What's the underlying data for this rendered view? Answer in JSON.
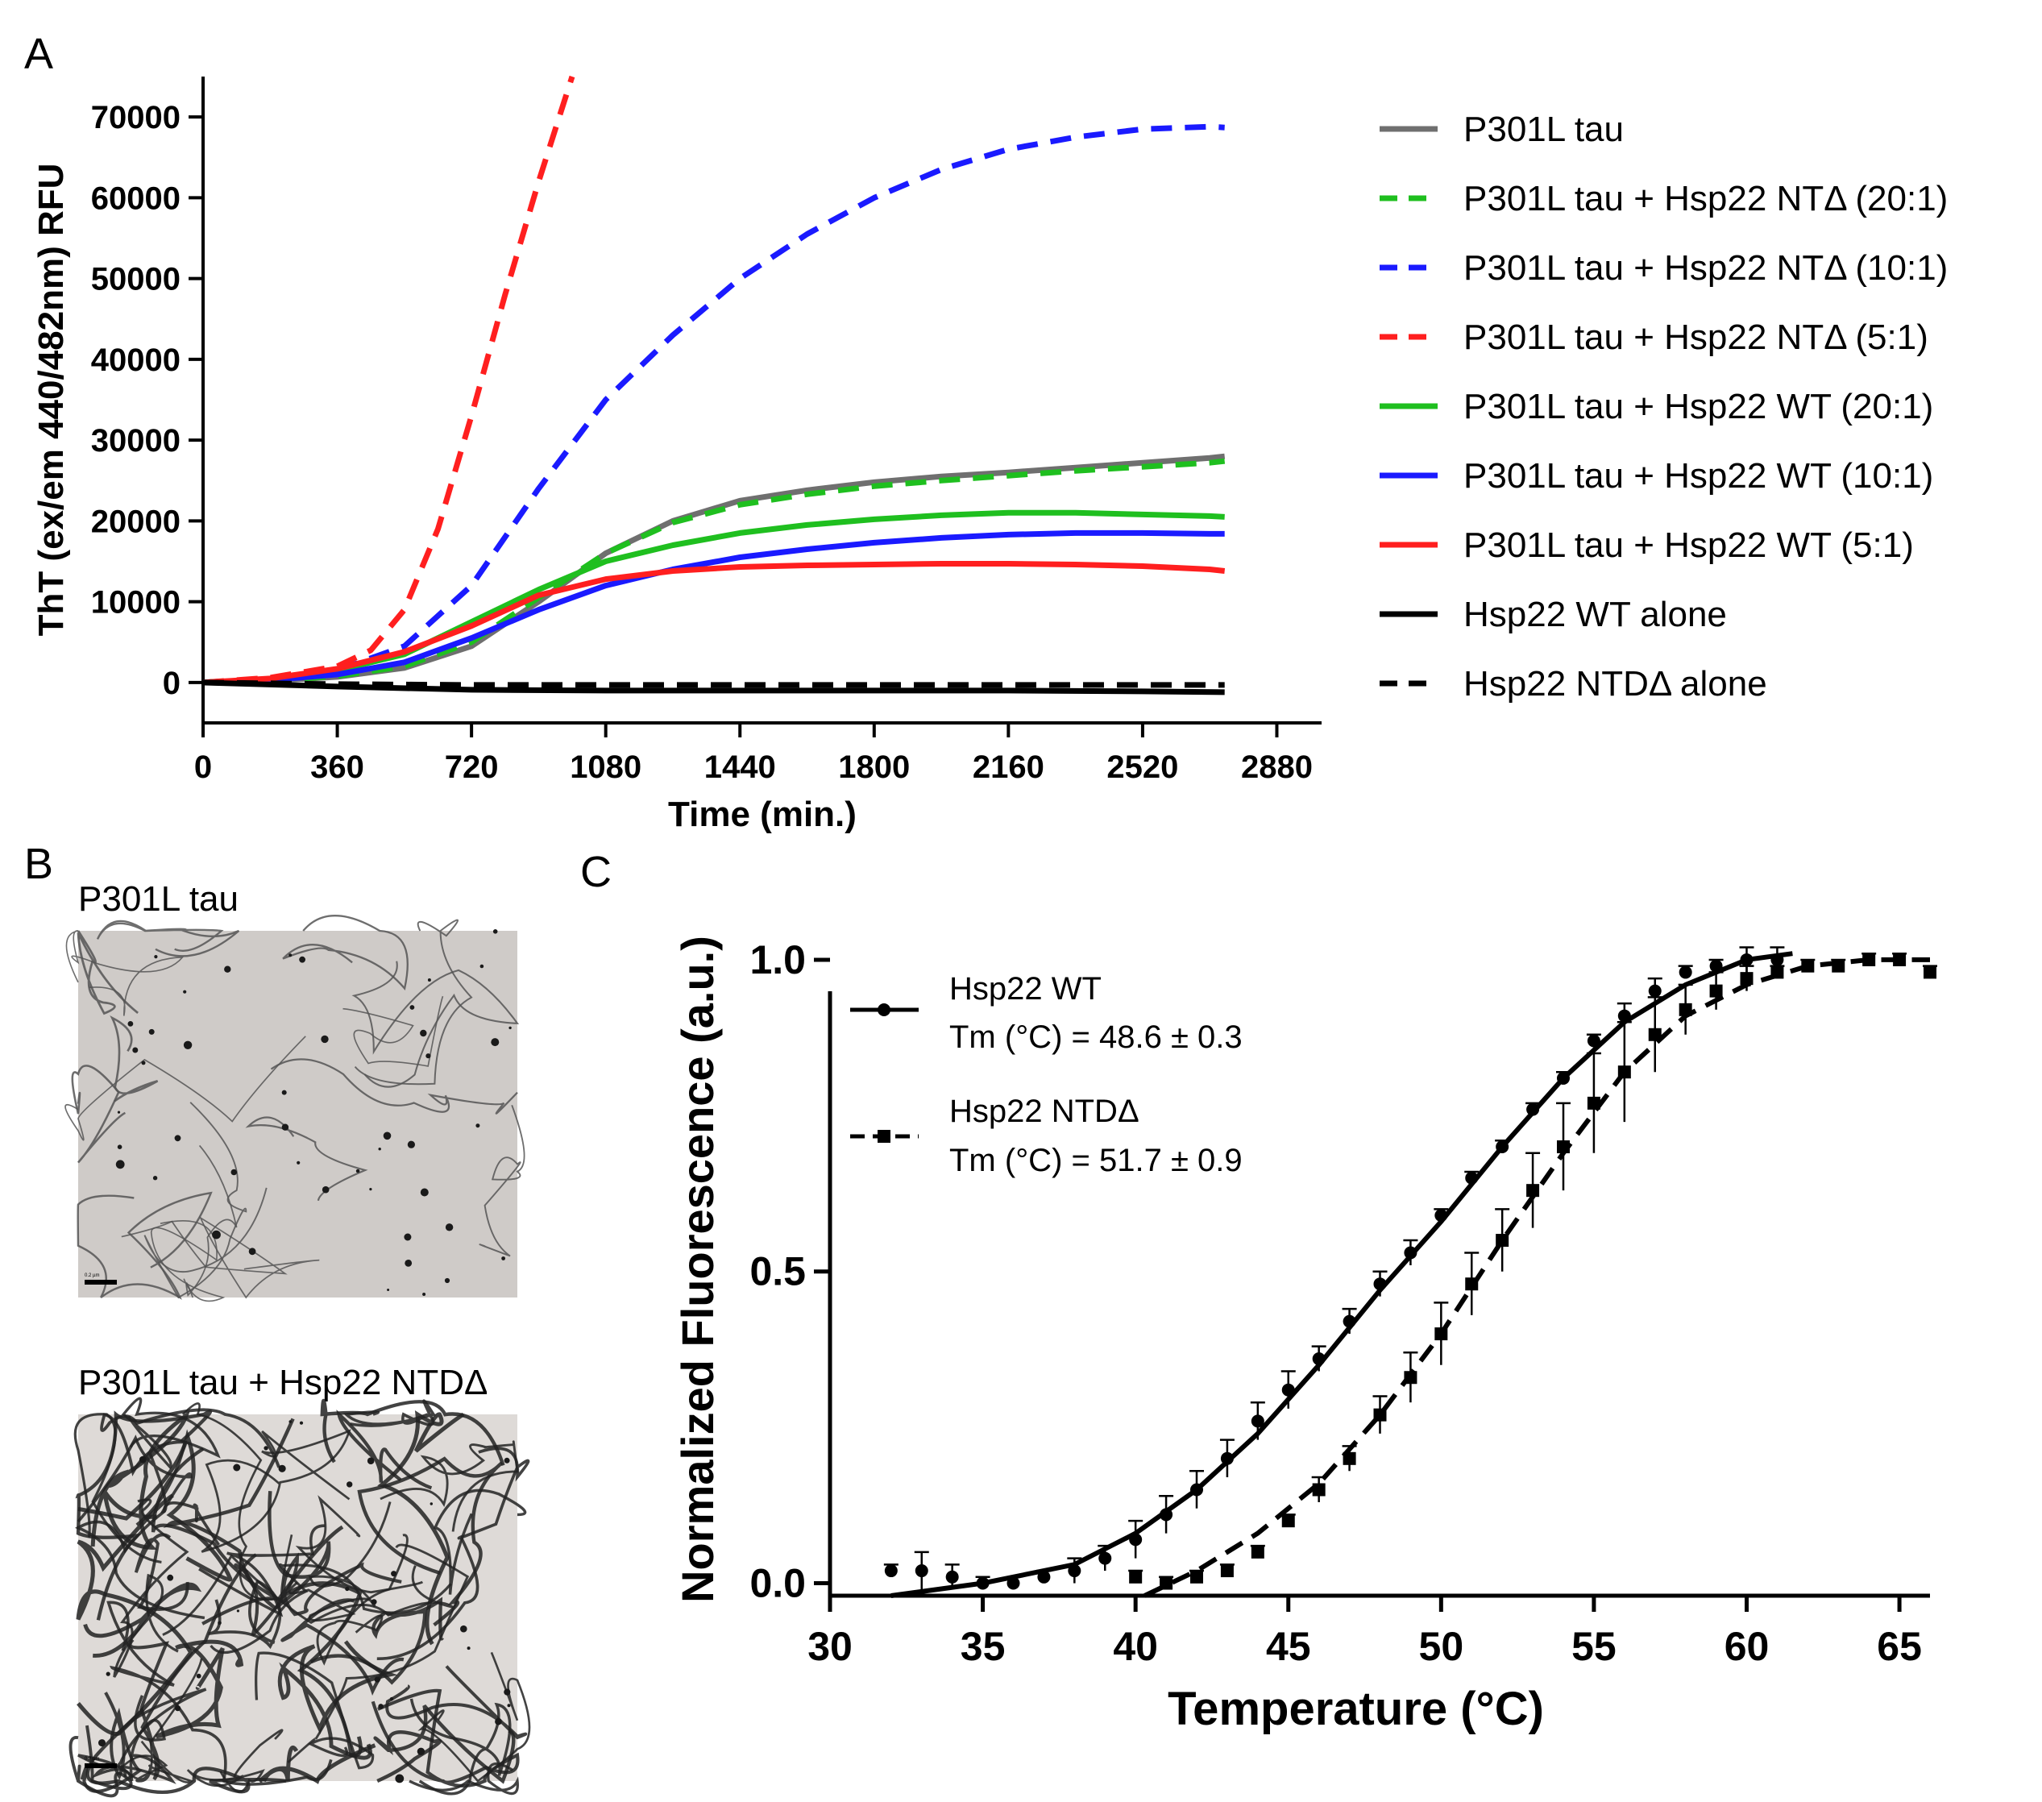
{
  "panels": {
    "a": {
      "label": "A"
    },
    "b": {
      "label": "B",
      "images": [
        {
          "caption": "P301L tau",
          "scale_bar_text": "0.2 µm"
        },
        {
          "caption": "P301L tau + Hsp22 NTDΔ",
          "scale_bar_text": "0.2 µm"
        }
      ]
    },
    "c": {
      "label": "C"
    }
  },
  "colors": {
    "gray": "#6f6f6f",
    "green": "#1fbf1f",
    "blue": "#1a1aff",
    "red": "#ff1f1f",
    "black": "#000000"
  },
  "chart_data": [
    {
      "panel": "A",
      "type": "line",
      "title": "",
      "xlabel": "Time (min.)",
      "ylabel": "ThT (ex/em 440/482nm) RFU",
      "xlim": [
        0,
        3000
      ],
      "ylim": [
        -5000,
        75000
      ],
      "xticks": [
        0,
        360,
        720,
        1080,
        1440,
        1800,
        2160,
        2520,
        2880
      ],
      "yticks": [
        0,
        10000,
        20000,
        30000,
        40000,
        50000,
        60000,
        70000
      ],
      "legend_position": "right",
      "series": [
        {
          "name": "P301L tau",
          "color": "#6f6f6f",
          "dash": false,
          "x": [
            0,
            180,
            360,
            540,
            720,
            900,
            1080,
            1260,
            1440,
            1620,
            1800,
            1980,
            2160,
            2340,
            2520,
            2700,
            2740
          ],
          "y": [
            0,
            200,
            700,
            1800,
            4500,
            10000,
            16000,
            20000,
            22500,
            23800,
            24800,
            25500,
            26000,
            26600,
            27200,
            27800,
            28000
          ]
        },
        {
          "name": "P301L tau +  Hsp22 NTΔ (20:1)",
          "color": "#1fbf1f",
          "dash": true,
          "x": [
            0,
            180,
            360,
            540,
            720,
            900,
            1080,
            1260,
            1440,
            1620,
            1800,
            1980,
            2160,
            2340,
            2520,
            2700,
            2740
          ],
          "y": [
            0,
            200,
            800,
            2000,
            5000,
            10500,
            16000,
            19800,
            22000,
            23300,
            24300,
            25000,
            25600,
            26200,
            26700,
            27200,
            27400
          ]
        },
        {
          "name": "P301L tau +  Hsp22 NTΔ (10:1)",
          "color": "#1a1aff",
          "dash": true,
          "x": [
            0,
            180,
            360,
            540,
            720,
            900,
            1080,
            1260,
            1440,
            1620,
            1800,
            1980,
            2160,
            2340,
            2520,
            2700,
            2740
          ],
          "y": [
            0,
            500,
            1500,
            4500,
            12000,
            24000,
            35000,
            43000,
            50000,
            55500,
            60000,
            63500,
            66000,
            67500,
            68500,
            68800,
            68700
          ]
        },
        {
          "name": "P301L tau +  Hsp22 NTΔ (5:1)",
          "color": "#ff1f1f",
          "dash": true,
          "x": [
            0,
            180,
            360,
            450,
            540,
            630,
            720,
            810,
            900,
            990
          ],
          "y": [
            0,
            600,
            2000,
            4000,
            9000,
            19000,
            33000,
            48000,
            62000,
            75000
          ]
        },
        {
          "name": "P301L tau + Hsp22 WT (20:1)",
          "color": "#1fbf1f",
          "dash": false,
          "x": [
            0,
            180,
            360,
            540,
            720,
            900,
            1080,
            1260,
            1440,
            1620,
            1800,
            1980,
            2160,
            2340,
            2520,
            2700,
            2740
          ],
          "y": [
            0,
            400,
            1500,
            3500,
            7500,
            11500,
            15000,
            17000,
            18500,
            19500,
            20200,
            20700,
            21000,
            21000,
            20800,
            20600,
            20500
          ]
        },
        {
          "name": "P301L tau + Hsp22 WT (10:1)",
          "color": "#1a1aff",
          "dash": false,
          "x": [
            0,
            180,
            360,
            540,
            720,
            900,
            1080,
            1260,
            1440,
            1620,
            1800,
            1980,
            2160,
            2340,
            2520,
            2700,
            2740
          ],
          "y": [
            0,
            300,
            1000,
            2500,
            5500,
            9000,
            12000,
            14000,
            15500,
            16500,
            17300,
            17900,
            18300,
            18500,
            18500,
            18400,
            18400
          ]
        },
        {
          "name": "P301L tau + Hsp22 WT (5:1)",
          "color": "#ff1f1f",
          "dash": false,
          "x": [
            0,
            180,
            360,
            540,
            720,
            900,
            1080,
            1260,
            1440,
            1620,
            1800,
            1980,
            2160,
            2340,
            2520,
            2700,
            2740
          ],
          "y": [
            0,
            500,
            1700,
            3800,
            7000,
            10800,
            12800,
            13800,
            14300,
            14500,
            14600,
            14700,
            14700,
            14600,
            14400,
            14000,
            13800
          ]
        },
        {
          "name": "Hsp22 WT alone",
          "color": "#000000",
          "dash": false,
          "x": [
            0,
            360,
            720,
            1080,
            1440,
            1800,
            2160,
            2520,
            2740
          ],
          "y": [
            0,
            -500,
            -900,
            -1000,
            -1000,
            -1000,
            -1000,
            -1100,
            -1200
          ]
        },
        {
          "name": "Hsp22 NTDΔ alone",
          "color": "#000000",
          "dash": true,
          "x": [
            0,
            360,
            720,
            1080,
            1440,
            1800,
            2160,
            2520,
            2740
          ],
          "y": [
            0,
            -200,
            -300,
            -300,
            -300,
            -300,
            -300,
            -300,
            -300
          ]
        }
      ]
    },
    {
      "panel": "C",
      "type": "scatter",
      "title": "",
      "xlabel": "Temperature (°C)",
      "ylabel": "Normalized Fluorescence (a.u.)",
      "xlim": [
        30,
        66
      ],
      "ylim": [
        -0.02,
        1.04
      ],
      "xticks": [
        30,
        35,
        40,
        45,
        50,
        55,
        60,
        65
      ],
      "yticks": [
        0.0,
        0.5,
        1.0
      ],
      "ytick_labels": [
        "0.0",
        "0.5",
        "1.0"
      ],
      "legend_position": "top-left",
      "series": [
        {
          "name": "Hsp22 WT",
          "annotation": "Tm (°C) = 48.6 ± 0.3",
          "marker": "circle",
          "dash": false,
          "color": "#000000",
          "x": [
            32,
            33,
            34,
            35,
            36,
            37,
            38,
            39,
            40,
            41,
            42,
            43,
            44,
            45,
            46,
            47,
            48,
            49,
            50,
            51,
            52,
            53,
            54,
            55,
            56,
            57,
            58,
            59,
            60,
            61
          ],
          "y": [
            0.02,
            0.02,
            0.01,
            0.0,
            0.0,
            0.01,
            0.02,
            0.04,
            0.07,
            0.11,
            0.15,
            0.2,
            0.26,
            0.31,
            0.36,
            0.42,
            0.48,
            0.53,
            0.59,
            0.65,
            0.7,
            0.76,
            0.81,
            0.87,
            0.91,
            0.95,
            0.98,
            0.99,
            1.0,
            1.0
          ],
          "error": [
            0.01,
            0.03,
            0.02,
            0.01,
            0.01,
            0.01,
            0.02,
            0.02,
            0.03,
            0.03,
            0.03,
            0.03,
            0.03,
            0.03,
            0.02,
            0.02,
            0.02,
            0.02,
            0.01,
            0.01,
            0.01,
            0.01,
            0.01,
            0.01,
            0.02,
            0.02,
            0.01,
            0.01,
            0.02,
            0.02
          ],
          "fit": {
            "x": [
              32,
              35,
              38,
              40,
              42,
              44,
              46,
              48,
              50,
              52,
              54,
              56,
              58,
              60,
              61.5
            ],
            "y": [
              -0.02,
              0.0,
              0.03,
              0.08,
              0.15,
              0.24,
              0.35,
              0.47,
              0.58,
              0.7,
              0.81,
              0.9,
              0.96,
              1.0,
              1.01
            ]
          }
        },
        {
          "name": "Hsp22 NTDΔ",
          "annotation": "Tm (°C) = 51.7 ± 0.9",
          "marker": "square",
          "dash": true,
          "color": "#000000",
          "x": [
            40,
            41,
            42,
            43,
            44,
            45,
            46,
            47,
            48,
            49,
            50,
            51,
            52,
            53,
            54,
            55,
            56,
            57,
            58,
            59,
            60,
            61,
            62,
            63,
            64,
            65,
            66
          ],
          "y": [
            0.01,
            0.0,
            0.01,
            0.02,
            0.05,
            0.1,
            0.15,
            0.2,
            0.27,
            0.33,
            0.4,
            0.48,
            0.55,
            0.63,
            0.7,
            0.77,
            0.82,
            0.88,
            0.92,
            0.95,
            0.97,
            0.98,
            0.99,
            0.99,
            1.0,
            1.0,
            0.98
          ],
          "error": [
            0.01,
            0.01,
            0.01,
            0.01,
            0.01,
            0.01,
            0.02,
            0.02,
            0.03,
            0.04,
            0.05,
            0.05,
            0.05,
            0.06,
            0.07,
            0.08,
            0.08,
            0.06,
            0.04,
            0.03,
            0.02,
            0.01,
            0.01,
            0.01,
            0.01,
            0.01,
            0.01
          ],
          "fit": {
            "x": [
              40.3,
              42,
              44,
              46,
              48,
              50,
              52,
              54,
              56,
              58,
              60,
              62,
              64,
              66
            ],
            "y": [
              -0.02,
              0.02,
              0.08,
              0.16,
              0.27,
              0.4,
              0.55,
              0.69,
              0.82,
              0.91,
              0.96,
              0.99,
              1.0,
              1.0
            ]
          }
        }
      ]
    }
  ]
}
